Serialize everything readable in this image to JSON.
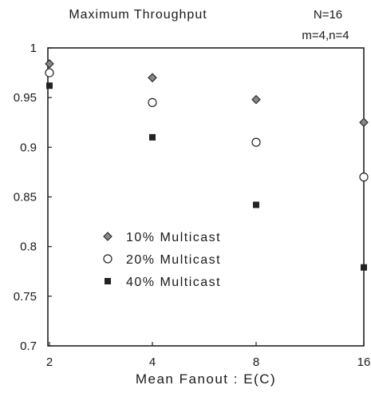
{
  "chart_data": {
    "type": "scatter",
    "title": "Maximum Throughput",
    "annotations": [
      "N=16",
      "m=4,n=4"
    ],
    "xlabel": "Mean Fanout : E(C)",
    "ylabel": "",
    "x_scale": "log2",
    "categories": [
      "2",
      "4",
      "8",
      "16"
    ],
    "x": [
      2,
      4,
      8,
      16
    ],
    "ylim": [
      0.7,
      1.0
    ],
    "yticks": [
      "0.7",
      "0.75",
      "0.8",
      "0.85",
      "0.9",
      "0.95",
      "1"
    ],
    "legend_position": "lower-left",
    "grid": false,
    "series": [
      {
        "name": "10% Multicast",
        "marker": "diamond",
        "values": [
          0.984,
          0.97,
          0.948,
          0.925
        ]
      },
      {
        "name": "20% Multicast",
        "marker": "circle",
        "values": [
          0.975,
          0.945,
          0.905,
          0.87
        ]
      },
      {
        "name": "40% Multicast",
        "marker": "square",
        "values": [
          0.962,
          0.91,
          0.842,
          0.779
        ]
      }
    ]
  }
}
